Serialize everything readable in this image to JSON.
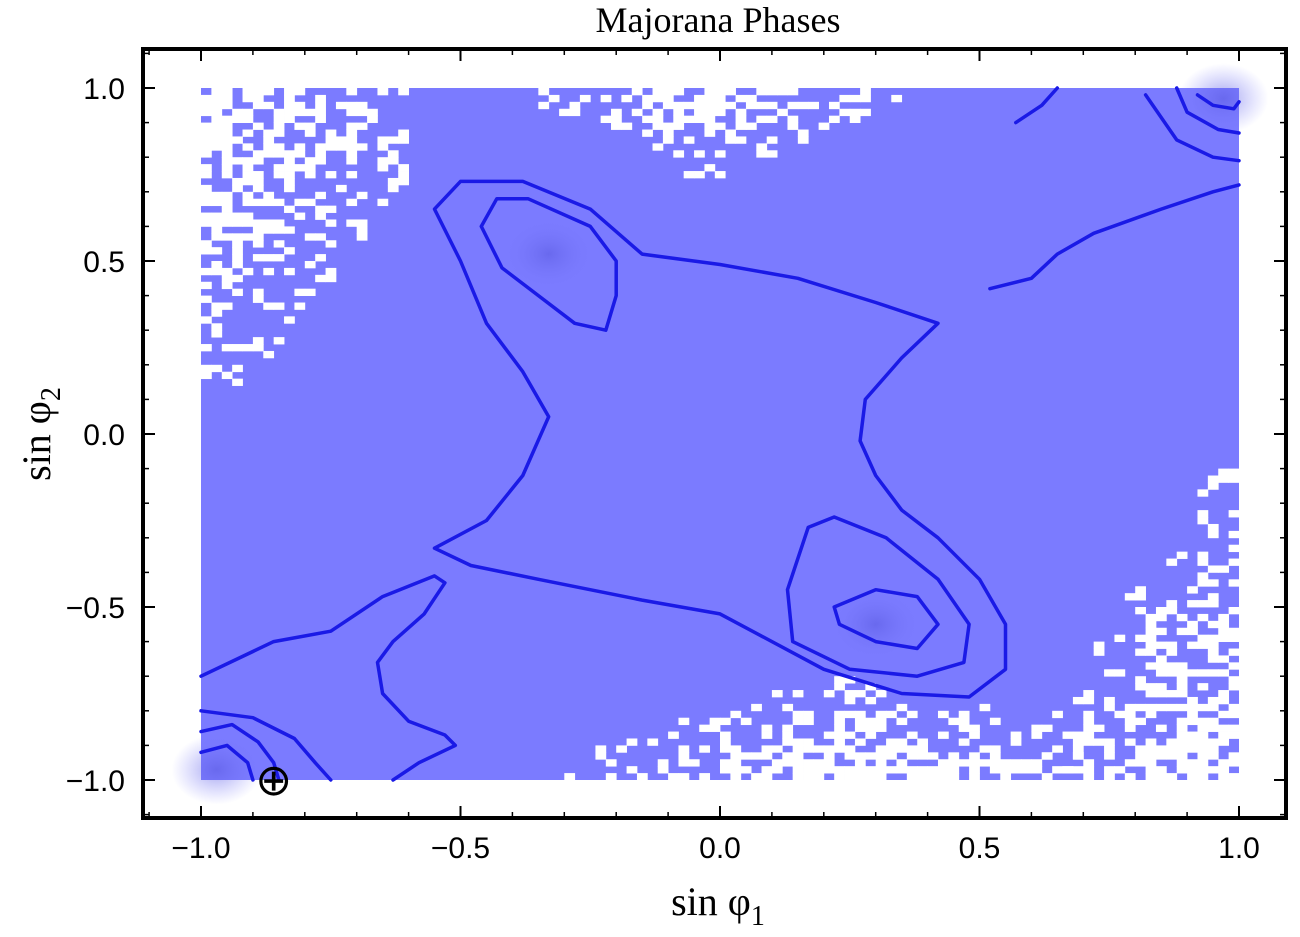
{
  "chart_data": {
    "type": "heatmap",
    "title": "Majorana Phases",
    "xlabel": "sin φ",
    "xlabel_sub": "1",
    "ylabel": "sin φ",
    "ylabel_sub": "2",
    "xlim": [
      -1.1,
      1.1
    ],
    "ylim": [
      -1.1,
      1.1
    ],
    "x_ticks": [
      -1.0,
      -0.5,
      0.0,
      0.5,
      1.0
    ],
    "y_ticks": [
      -1.0,
      -0.5,
      0.0,
      0.5,
      1.0
    ],
    "x_tick_labels": [
      "−1.0",
      "−0.5",
      "0.0",
      "0.5",
      "1.0"
    ],
    "y_tick_labels": [
      "−1.0",
      "−0.5",
      "0.0",
      "0.5",
      "1.0"
    ],
    "grid": false,
    "legend": "none",
    "fill_color": "#7b7bff",
    "contour_color": "#1a1ae6",
    "marker": {
      "symbol": "⊕",
      "x": -0.86,
      "y": -1.0
    },
    "density_peaks": [
      {
        "x": -0.33,
        "y": 0.52
      },
      {
        "x": 0.3,
        "y": -0.55
      },
      {
        "x": 0.97,
        "y": 0.97
      },
      {
        "x": -0.97,
        "y": -0.97
      }
    ],
    "contours": [
      {
        "level": 1,
        "points": [
          [
            -0.55,
            -0.33
          ],
          [
            -0.45,
            -0.25
          ],
          [
            -0.38,
            -0.12
          ],
          [
            -0.33,
            0.05
          ],
          [
            -0.38,
            0.18
          ],
          [
            -0.45,
            0.32
          ],
          [
            -0.5,
            0.5
          ],
          [
            -0.55,
            0.65
          ],
          [
            -0.5,
            0.73
          ],
          [
            -0.38,
            0.73
          ],
          [
            -0.25,
            0.65
          ],
          [
            -0.15,
            0.52
          ],
          [
            0.0,
            0.49
          ],
          [
            0.15,
            0.45
          ],
          [
            0.3,
            0.38
          ],
          [
            0.42,
            0.32
          ],
          [
            0.35,
            0.22
          ],
          [
            0.28,
            0.1
          ],
          [
            0.27,
            -0.02
          ],
          [
            0.3,
            -0.12
          ],
          [
            0.35,
            -0.22
          ],
          [
            0.42,
            -0.3
          ],
          [
            0.5,
            -0.42
          ],
          [
            0.55,
            -0.55
          ],
          [
            0.55,
            -0.68
          ],
          [
            0.48,
            -0.76
          ],
          [
            0.35,
            -0.75
          ],
          [
            0.2,
            -0.68
          ],
          [
            0.0,
            -0.52
          ],
          [
            -0.15,
            -0.48
          ],
          [
            -0.35,
            -0.42
          ],
          [
            -0.48,
            -0.38
          ],
          [
            -0.55,
            -0.33
          ]
        ]
      },
      {
        "level": 2,
        "points": [
          [
            -0.46,
            0.6
          ],
          [
            -0.43,
            0.68
          ],
          [
            -0.37,
            0.68
          ],
          [
            -0.25,
            0.6
          ],
          [
            -0.2,
            0.5
          ],
          [
            -0.2,
            0.4
          ],
          [
            -0.22,
            0.3
          ],
          [
            -0.28,
            0.32
          ],
          [
            -0.35,
            0.4
          ],
          [
            -0.42,
            0.48
          ],
          [
            -0.46,
            0.6
          ]
        ]
      },
      {
        "level": 2,
        "points": [
          [
            0.13,
            -0.45
          ],
          [
            0.17,
            -0.27
          ],
          [
            0.22,
            -0.24
          ],
          [
            0.32,
            -0.3
          ],
          [
            0.42,
            -0.42
          ],
          [
            0.48,
            -0.55
          ],
          [
            0.47,
            -0.66
          ],
          [
            0.38,
            -0.7
          ],
          [
            0.25,
            -0.68
          ],
          [
            0.14,
            -0.6
          ],
          [
            0.13,
            -0.45
          ]
        ]
      },
      {
        "level": 3,
        "points": [
          [
            0.22,
            -0.5
          ],
          [
            0.3,
            -0.45
          ],
          [
            0.38,
            -0.47
          ],
          [
            0.42,
            -0.55
          ],
          [
            0.38,
            -0.62
          ],
          [
            0.3,
            -0.6
          ],
          [
            0.23,
            -0.55
          ],
          [
            0.22,
            -0.5
          ]
        ]
      },
      {
        "level": 1,
        "points": [
          [
            -1.0,
            -0.7
          ],
          [
            -0.86,
            -0.6
          ],
          [
            -0.75,
            -0.57
          ],
          [
            -0.65,
            -0.47
          ],
          [
            -0.55,
            -0.41
          ],
          [
            -0.53,
            -0.43
          ],
          [
            -0.57,
            -0.52
          ],
          [
            -0.63,
            -0.6
          ],
          [
            -0.66,
            -0.66
          ],
          [
            -0.65,
            -0.75
          ],
          [
            -0.6,
            -0.83
          ],
          [
            -0.53,
            -0.87
          ],
          [
            -0.51,
            -0.9
          ],
          [
            -0.58,
            -0.95
          ],
          [
            -0.63,
            -1.0
          ]
        ]
      },
      {
        "level": 2,
        "points": [
          [
            -1.0,
            -0.8
          ],
          [
            -0.9,
            -0.82
          ],
          [
            -0.82,
            -0.88
          ],
          [
            -0.78,
            -0.95
          ],
          [
            -0.75,
            -1.0
          ]
        ]
      },
      {
        "level": 3,
        "points": [
          [
            -1.0,
            -0.86
          ],
          [
            -0.94,
            -0.84
          ],
          [
            -0.89,
            -0.89
          ],
          [
            -0.86,
            -0.95
          ],
          [
            -0.85,
            -1.0
          ]
        ]
      },
      {
        "level": 4,
        "points": [
          [
            -1.0,
            -0.92
          ],
          [
            -0.95,
            -0.9
          ],
          [
            -0.91,
            -0.95
          ],
          [
            -0.9,
            -1.0
          ]
        ]
      },
      {
        "level": 1,
        "points": [
          [
            0.52,
            0.42
          ],
          [
            0.6,
            0.45
          ],
          [
            0.65,
            0.52
          ],
          [
            0.72,
            0.58
          ],
          [
            0.85,
            0.65
          ],
          [
            0.95,
            0.7
          ],
          [
            1.0,
            0.72
          ]
        ]
      },
      {
        "level": 1,
        "points": [
          [
            0.57,
            0.9
          ],
          [
            0.62,
            0.95
          ],
          [
            0.65,
            1.0
          ]
        ]
      },
      {
        "level": 2,
        "points": [
          [
            0.82,
            0.98
          ],
          [
            0.88,
            0.85
          ],
          [
            0.95,
            0.8
          ],
          [
            1.0,
            0.79
          ]
        ]
      },
      {
        "level": 3,
        "points": [
          [
            0.88,
            1.0
          ],
          [
            0.9,
            0.93
          ],
          [
            0.96,
            0.88
          ],
          [
            1.0,
            0.87
          ]
        ]
      },
      {
        "level": 4,
        "points": [
          [
            0.92,
            0.98
          ],
          [
            0.95,
            0.95
          ],
          [
            0.99,
            0.94
          ],
          [
            1.0,
            0.96
          ]
        ]
      }
    ]
  }
}
